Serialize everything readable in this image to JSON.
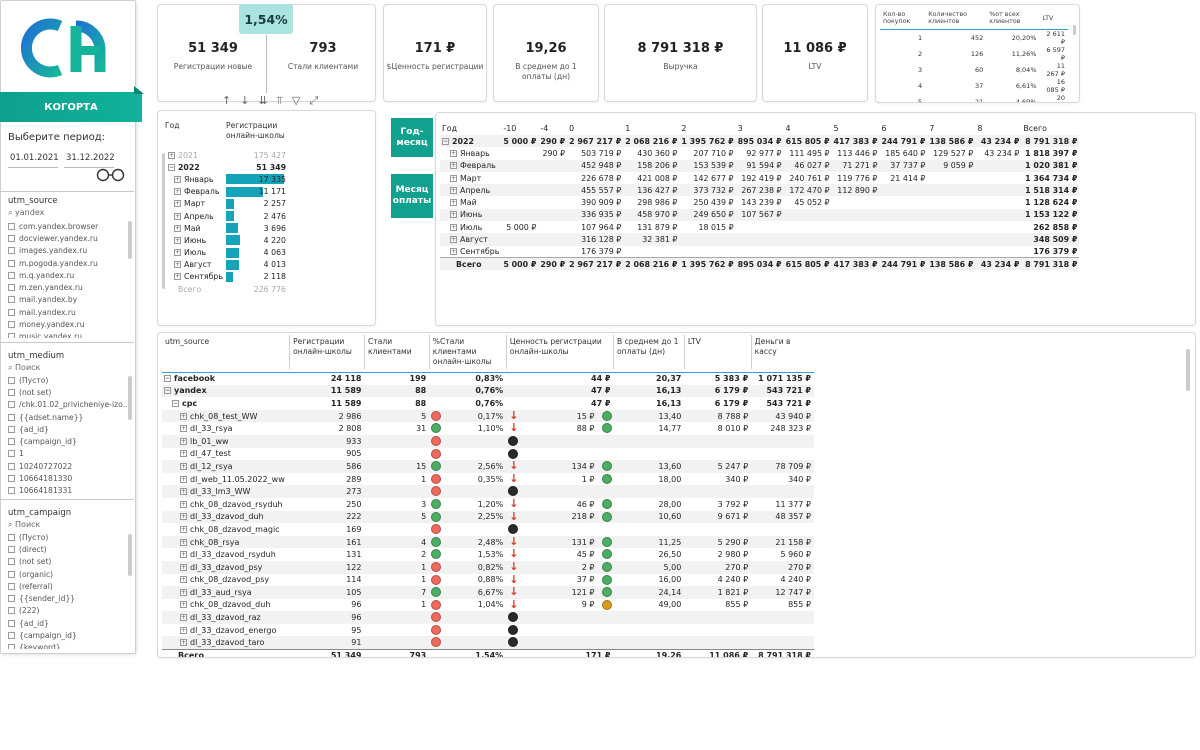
{
  "sidebar": {
    "brand_label": "КОГОРТА",
    "period_label": "Выберите период:",
    "date_from": "01.01.2021",
    "date_to": "31.12.2022",
    "utm_source": {
      "title": "utm_source",
      "search_value": "yandex",
      "items": [
        "com.yandex.browser",
        "docviewer.yandex.ru",
        "images.yandex.ru",
        "m.pogoda.yandex.ru",
        "m.q.yandex.ru",
        "m.zen.yandex.ru",
        "mail.yandex.by",
        "mail.yandex.ru",
        "money.yandex.ru",
        "music.yandex.ru"
      ]
    },
    "utm_medium": {
      "title": "utm_medium",
      "search_placeholder": "Поиск",
      "items": [
        "(Пусто)",
        "(not set)",
        "/chk.01.02_privicheniye-izo...",
        "{{adset.name}}",
        "{ad_id}",
        "{campaign_id}",
        "1",
        "10240727022",
        "10664181330",
        "10664181331"
      ]
    },
    "utm_campaign": {
      "title": "utm_campaign",
      "search_placeholder": "Поиск",
      "items": [
        "(Пусто)",
        "(direct)",
        "(not set)",
        "(organic)",
        "(referral)",
        "{{sender_id}}",
        "(222)",
        "{ad_id}",
        "{campaign_id}",
        "{keyword}"
      ]
    }
  },
  "kpis": {
    "conversion_bubble": "1,54%",
    "registrations": {
      "value": "51 349",
      "label": "Регистрации новые"
    },
    "became_clients": {
      "value": "793",
      "label": "Стали клиентами"
    },
    "reg_value": {
      "value": "171 ₽",
      "label": "$Ценность регистрации"
    },
    "avg_days": {
      "value": "19,26",
      "label": "В среднем до 1 оплаты (дн)"
    },
    "revenue": {
      "value": "8 791 318 ₽",
      "label": "Выручка"
    },
    "ltv": {
      "value": "11 086 ₽",
      "label": "LTV"
    }
  },
  "purchases_table": {
    "headers": [
      "Кол-во покупок",
      "Количество клиентов",
      "%от всех клиентов",
      "LTV"
    ],
    "rows": [
      [
        "1",
        "452",
        "20,20%",
        "2 611 ₽"
      ],
      [
        "2",
        "126",
        "11,26%",
        "6 597 ₽"
      ],
      [
        "3",
        "60",
        "8,04%",
        "11 267 ₽"
      ],
      [
        "4",
        "37",
        "6,61%",
        "16 085 ₽"
      ],
      [
        "5",
        "21",
        "4,69%",
        "20 507 ₽"
      ],
      [
        "6",
        "",
        "",
        ""
      ]
    ],
    "total": [
      "Всего",
      "793",
      "100,00%",
      "11 086 ₽"
    ]
  },
  "reg_by_month": {
    "headers": [
      "Год",
      "Регистрации онлайн-школы"
    ],
    "rows": [
      {
        "label": "2021",
        "value": "175 427",
        "level": 0,
        "faded": true,
        "pct": 0
      },
      {
        "label": "2022",
        "value": "51 349",
        "level": 0,
        "bold": true,
        "pct": 0
      },
      {
        "label": "Январь",
        "value": "17 335",
        "level": 1,
        "pct": 100
      },
      {
        "label": "Февраль",
        "value": "11 171",
        "level": 1,
        "pct": 64
      },
      {
        "label": "Март",
        "value": "2 257",
        "level": 1,
        "pct": 13
      },
      {
        "label": "Апрель",
        "value": "2 476",
        "level": 1,
        "pct": 14
      },
      {
        "label": "Май",
        "value": "3 696",
        "level": 1,
        "pct": 21
      },
      {
        "label": "Июнь",
        "value": "4 220",
        "level": 1,
        "pct": 24
      },
      {
        "label": "Июль",
        "value": "4 063",
        "level": 1,
        "pct": 23
      },
      {
        "label": "Август",
        "value": "4 013",
        "level": 1,
        "pct": 23
      },
      {
        "label": "Сентябрь",
        "value": "2 118",
        "level": 1,
        "pct": 12
      }
    ],
    "total": {
      "label": "Всего",
      "value": "226 776"
    }
  },
  "cohort": {
    "btn_year_month": "Год-месяц",
    "btn_pay_month": "Месяц оплаты",
    "headers": [
      "Год",
      "-10",
      "-4",
      "0",
      "1",
      "2",
      "3",
      "4",
      "5",
      "6",
      "7",
      "8",
      "Всего"
    ],
    "rows": [
      {
        "label": "2022",
        "bold": true,
        "cells": [
          "5 000 ₽",
          "290 ₽",
          "2 967 217 ₽",
          "2 068 216 ₽",
          "1 395 762 ₽",
          "895 034 ₽",
          "615 805 ₽",
          "417 383 ₽",
          "244 791 ₽",
          "138 586 ₽",
          "43 234 ₽",
          "8 791 318 ₽"
        ]
      },
      {
        "label": "Январь",
        "cells": [
          "",
          "290 ₽",
          "503 719 ₽",
          "430 360 ₽",
          "207 710 ₽",
          "92 977 ₽",
          "111 495 ₽",
          "113 446 ₽",
          "185 640 ₽",
          "129 527 ₽",
          "43 234 ₽",
          "1 818 397 ₽"
        ]
      },
      {
        "label": "Февраль",
        "cells": [
          "",
          "",
          "452 948 ₽",
          "158 206 ₽",
          "153 539 ₽",
          "91 594 ₽",
          "46 027 ₽",
          "71 271 ₽",
          "37 737 ₽",
          "9 059 ₽",
          "",
          "1 020 381 ₽"
        ]
      },
      {
        "label": "Март",
        "cells": [
          "",
          "",
          "226 678 ₽",
          "421 008 ₽",
          "142 677 ₽",
          "192 419 ₽",
          "240 761 ₽",
          "119 776 ₽",
          "21 414 ₽",
          "",
          "",
          "1 364 734 ₽"
        ]
      },
      {
        "label": "Апрель",
        "cells": [
          "",
          "",
          "455 557 ₽",
          "136 427 ₽",
          "373 732 ₽",
          "267 238 ₽",
          "172 470 ₽",
          "112 890 ₽",
          "",
          "",
          "",
          "1 518 314 ₽"
        ]
      },
      {
        "label": "Май",
        "cells": [
          "",
          "",
          "390 909 ₽",
          "298 986 ₽",
          "250 439 ₽",
          "143 239 ₽",
          "45 052 ₽",
          "",
          "",
          "",
          "",
          "1 128 624 ₽"
        ]
      },
      {
        "label": "Июнь",
        "cells": [
          "",
          "",
          "336 935 ₽",
          "458 970 ₽",
          "249 650 ₽",
          "107 567 ₽",
          "",
          "",
          "",
          "",
          "",
          "1 153 122 ₽"
        ]
      },
      {
        "label": "Июль",
        "cells": [
          "5 000 ₽",
          "",
          "107 964 ₽",
          "131 879 ₽",
          "18 015 ₽",
          "",
          "",
          "",
          "",
          "",
          "",
          "262 858 ₽"
        ]
      },
      {
        "label": "Август",
        "cells": [
          "",
          "",
          "316 128 ₽",
          "32 381 ₽",
          "",
          "",
          "",
          "",
          "",
          "",
          "",
          "348 509 ₽"
        ]
      },
      {
        "label": "Сентябрь",
        "cells": [
          "",
          "",
          "176 379 ₽",
          "",
          "",
          "",
          "",
          "",
          "",
          "",
          "",
          "176 379 ₽"
        ]
      }
    ],
    "total": {
      "label": "Всего",
      "cells": [
        "5 000 ₽",
        "290 ₽",
        "2 967 217 ₽",
        "2 068 216 ₽",
        "1 395 762 ₽",
        "895 034 ₽",
        "615 805 ₽",
        "417 383 ₽",
        "244 791 ₽",
        "138 586 ₽",
        "43 234 ₽",
        "8 791 318 ₽"
      ]
    }
  },
  "main_table": {
    "headers": [
      "utm_source",
      "Регистрации онлайн-школы",
      "Стали клиентами",
      "%Стали клиентами онлайн-школы",
      "Ценность регистрации онлайн-школы",
      "В среднем до 1 оплаты (дн)",
      "LTV",
      "Деньги в кассу"
    ],
    "rows": [
      {
        "label": "facebook",
        "level": 0,
        "bold": true,
        "reg": "24 118",
        "cli": "199",
        "pct": "0,83%",
        "val": "44 ₽",
        "days": "20,37",
        "ltv": "5 383 ₽",
        "money": "1 071 135 ₽",
        "dot1": "",
        "arrow": false,
        "dot2": ""
      },
      {
        "label": "yandex",
        "level": 0,
        "bold": true,
        "reg": "11 589",
        "cli": "88",
        "pct": "0,76%",
        "val": "47 ₽",
        "days": "16,13",
        "ltv": "6 179 ₽",
        "money": "543 721 ₽",
        "dot1": "",
        "arrow": false,
        "dot2": ""
      },
      {
        "label": "cpc",
        "level": 1,
        "bold": true,
        "reg": "11 589",
        "cli": "88",
        "pct": "0,76%",
        "val": "47 ₽",
        "days": "16,13",
        "ltv": "6 179 ₽",
        "money": "543 721 ₽",
        "dot1": "",
        "arrow": false,
        "dot2": ""
      },
      {
        "label": "chk_08_test_WW",
        "level": 2,
        "reg": "2 986",
        "cli": "5",
        "pct": "0,17%",
        "val": "15 ₽",
        "days": "13,40",
        "ltv": "8 788 ₽",
        "money": "43 940 ₽",
        "dot1": "red",
        "arrow": true,
        "dot2": "green"
      },
      {
        "label": "dl_33_rsya",
        "level": 2,
        "reg": "2 808",
        "cli": "31",
        "pct": "1,10%",
        "val": "88 ₽",
        "days": "14,77",
        "ltv": "8 010 ₽",
        "money": "248 323 ₽",
        "dot1": "green",
        "arrow": true,
        "dot2": "green"
      },
      {
        "label": "lb_01_ww",
        "level": 2,
        "reg": "933",
        "cli": "",
        "pct": "",
        "val": "",
        "days": "",
        "ltv": "",
        "money": "",
        "dot1": "red",
        "arrow": false,
        "dot2": "",
        "dotm": "black"
      },
      {
        "label": "dl_47_test",
        "level": 2,
        "reg": "905",
        "cli": "",
        "pct": "",
        "val": "",
        "days": "",
        "ltv": "",
        "money": "",
        "dot1": "red",
        "arrow": false,
        "dot2": "",
        "dotm": "black"
      },
      {
        "label": "dl_12_rsya",
        "level": 2,
        "reg": "586",
        "cli": "15",
        "pct": "2,56%",
        "val": "134 ₽",
        "days": "13,60",
        "ltv": "5 247 ₽",
        "money": "78 709 ₽",
        "dot1": "green",
        "arrow": true,
        "dot2": "green"
      },
      {
        "label": "dl_web_11.05.2022_ww",
        "level": 2,
        "reg": "289",
        "cli": "1",
        "pct": "0,35%",
        "val": "1 ₽",
        "days": "18,00",
        "ltv": "340 ₽",
        "money": "340 ₽",
        "dot1": "red",
        "arrow": true,
        "dot2": "green"
      },
      {
        "label": "dl_33_lm3_WW",
        "level": 2,
        "reg": "273",
        "cli": "",
        "pct": "",
        "val": "",
        "days": "",
        "ltv": "",
        "money": "",
        "dot1": "red",
        "arrow": false,
        "dot2": "",
        "dotm": "black"
      },
      {
        "label": "chk_08_dzavod_rsyduh",
        "level": 2,
        "reg": "250",
        "cli": "3",
        "pct": "1,20%",
        "val": "46 ₽",
        "days": "28,00",
        "ltv": "3 792 ₽",
        "money": "11 377 ₽",
        "dot1": "green",
        "arrow": true,
        "dot2": "green"
      },
      {
        "label": "dl_33_dzavod_duh",
        "level": 2,
        "reg": "222",
        "cli": "5",
        "pct": "2,25%",
        "val": "218 ₽",
        "days": "10,60",
        "ltv": "9 671 ₽",
        "money": "48 357 ₽",
        "dot1": "green",
        "arrow": true,
        "dot2": "green"
      },
      {
        "label": "chk_08_dzavod_magic",
        "level": 2,
        "reg": "169",
        "cli": "",
        "pct": "",
        "val": "",
        "days": "",
        "ltv": "",
        "money": "",
        "dot1": "red",
        "arrow": false,
        "dot2": "",
        "dotm": "black"
      },
      {
        "label": "chk_08_rsya",
        "level": 2,
        "reg": "161",
        "cli": "4",
        "pct": "2,48%",
        "val": "131 ₽",
        "days": "11,25",
        "ltv": "5 290 ₽",
        "money": "21 158 ₽",
        "dot1": "green",
        "arrow": true,
        "dot2": "green"
      },
      {
        "label": "dl_33_dzavod_rsyduh",
        "level": 2,
        "reg": "131",
        "cli": "2",
        "pct": "1,53%",
        "val": "45 ₽",
        "days": "26,50",
        "ltv": "2 980 ₽",
        "money": "5 960 ₽",
        "dot1": "green",
        "arrow": true,
        "dot2": "green"
      },
      {
        "label": "dl_33_dzavod_psy",
        "level": 2,
        "reg": "122",
        "cli": "1",
        "pct": "0,82%",
        "val": "2 ₽",
        "days": "5,00",
        "ltv": "270 ₽",
        "money": "270 ₽",
        "dot1": "red",
        "arrow": true,
        "dot2": "green"
      },
      {
        "label": "chk_08_dzavod_psy",
        "level": 2,
        "reg": "114",
        "cli": "1",
        "pct": "0,88%",
        "val": "37 ₽",
        "days": "16,00",
        "ltv": "4 240 ₽",
        "money": "4 240 ₽",
        "dot1": "red",
        "arrow": true,
        "dot2": "green"
      },
      {
        "label": "dl_33_aud_rsya",
        "level": 2,
        "reg": "105",
        "cli": "7",
        "pct": "6,67%",
        "val": "121 ₽",
        "days": "24,14",
        "ltv": "1 821 ₽",
        "money": "12 747 ₽",
        "dot1": "green",
        "arrow": true,
        "dot2": "green"
      },
      {
        "label": "chk_08_dzavod_duh",
        "level": 2,
        "reg": "96",
        "cli": "1",
        "pct": "1,04%",
        "val": "9 ₽",
        "days": "49,00",
        "ltv": "855 ₽",
        "money": "855 ₽",
        "dot1": "red",
        "arrow": true,
        "dot2": "amber"
      },
      {
        "label": "dl_33_dzavod_raz",
        "level": 2,
        "reg": "96",
        "cli": "",
        "pct": "",
        "val": "",
        "days": "",
        "ltv": "",
        "money": "",
        "dot1": "red",
        "arrow": false,
        "dot2": "",
        "dotm": "black"
      },
      {
        "label": "dl_33_dzavod_energo",
        "level": 2,
        "reg": "95",
        "cli": "",
        "pct": "",
        "val": "",
        "days": "",
        "ltv": "",
        "money": "",
        "dot1": "red",
        "arrow": false,
        "dot2": "",
        "dotm": "black"
      },
      {
        "label": "dl_33_dzavod_taro",
        "level": 2,
        "reg": "91",
        "cli": "",
        "pct": "",
        "val": "",
        "days": "",
        "ltv": "",
        "money": "",
        "dot1": "red",
        "arrow": false,
        "dot2": "",
        "dotm": "black"
      }
    ],
    "total": {
      "label": "Всего",
      "reg": "51 349",
      "cli": "793",
      "pct": "1,54%",
      "val": "171 ₽",
      "days": "19,26",
      "ltv": "11 086 ₽",
      "money": "8 791 318 ₽"
    }
  },
  "colors": {
    "teal": "#12a08f",
    "bar": "#14a3b8",
    "bubble": "#a9e4e1"
  }
}
